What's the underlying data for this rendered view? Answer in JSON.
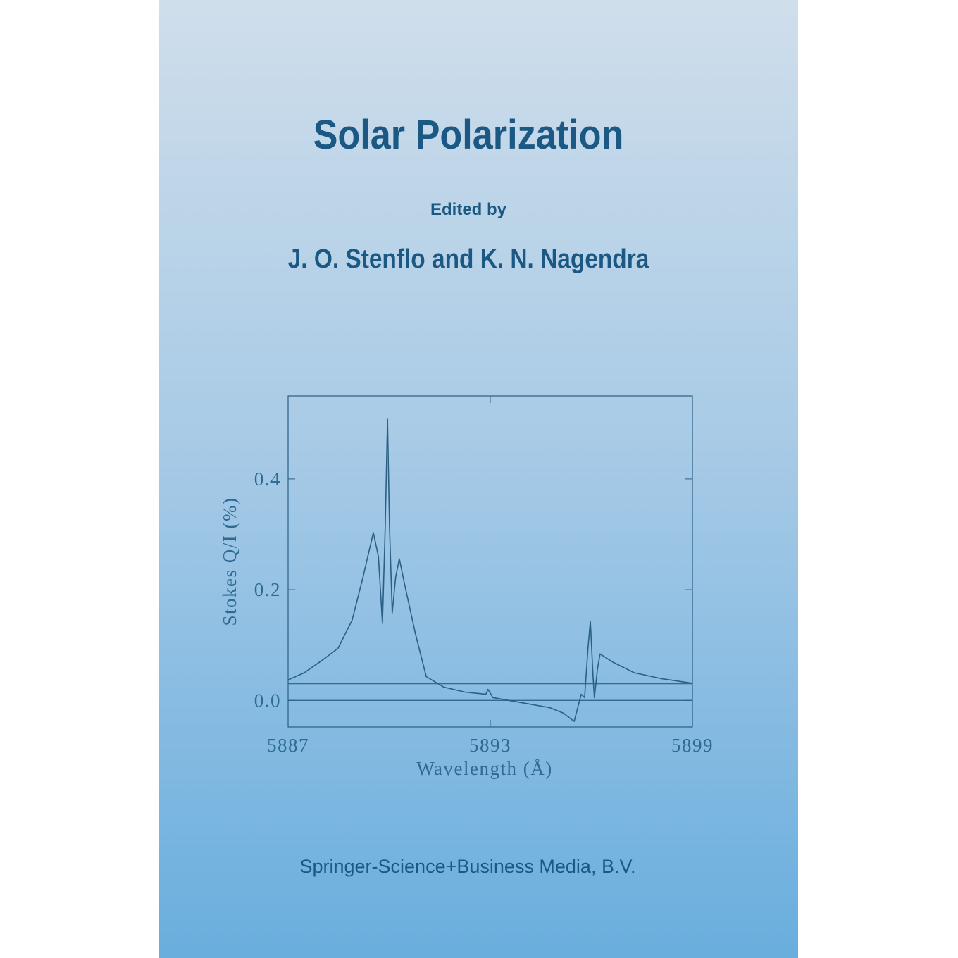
{
  "title": "Solar Polarization",
  "editor_label": "Edited by",
  "editors": "J. O. Stenflo and K. N. Nagendra",
  "publisher": "Springer-Science+Business Media, B.V.",
  "chart_data": {
    "type": "line",
    "xlabel": "Wavelength (Å)",
    "ylabel": "Stokes Q/I (%)",
    "xlim": [
      5887,
      5899
    ],
    "ylim": [
      -0.048,
      0.55
    ],
    "xticks": [
      5887,
      5893,
      5899
    ],
    "yticks": [
      {
        "value": 0,
        "label": "0.0"
      },
      0.2,
      0.4
    ],
    "hlines": [
      0,
      0.03
    ],
    "color": "#2a5f86",
    "x": [
      5887,
      5887.48,
      5888.07,
      5888.48,
      5888.9,
      5889.22,
      5889.53,
      5889.68,
      5889.8,
      5889.88,
      5889.95,
      5890.01,
      5890.09,
      5890.19,
      5890.3,
      5890.46,
      5890.78,
      5891.1,
      5891.62,
      5892.25,
      5892.87,
      5892.93,
      5893.08,
      5893.92,
      5894.76,
      5895.17,
      5895.49,
      5895.7,
      5895.8,
      5895.9,
      5895.97,
      5896.05,
      5896.09,
      5896.18,
      5896.26,
      5896.64,
      5897.27,
      5898.1,
      5899
    ],
    "values": [
      0.037,
      0.05,
      0.075,
      0.094,
      0.145,
      0.222,
      0.303,
      0.26,
      0.139,
      0.311,
      0.508,
      0.311,
      0.158,
      0.222,
      0.256,
      0.209,
      0.12,
      0.043,
      0.024,
      0.015,
      0.011,
      0.02,
      0.005,
      -0.004,
      -0.013,
      -0.023,
      -0.038,
      0.011,
      0.005,
      0.094,
      0.143,
      0.043,
      0.005,
      0.056,
      0.084,
      0.069,
      0.05,
      0.039,
      0.031
    ]
  }
}
